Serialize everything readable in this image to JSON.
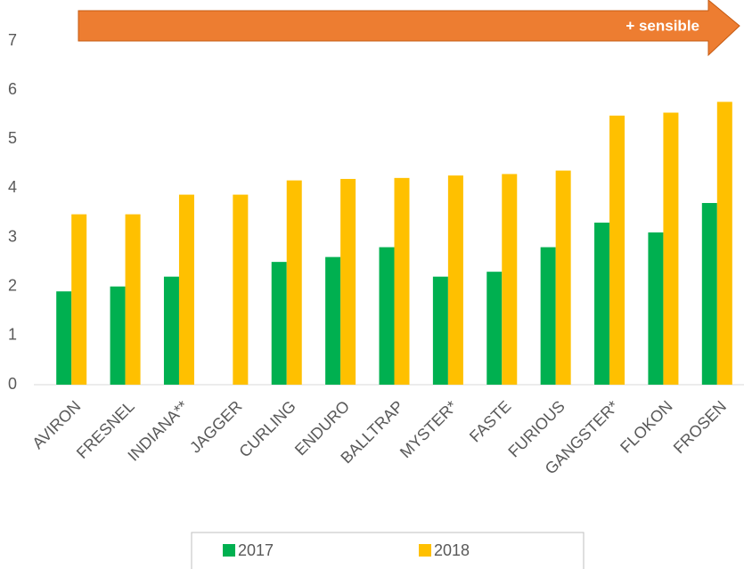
{
  "chart_data": {
    "type": "bar",
    "annotation": "+ sensible",
    "categories": [
      "AVIRON",
      "FRESNEL",
      "INDIANA**",
      "JAGGER",
      "CURLING",
      "ENDURO",
      "BALLTRAP",
      "MYSTER*",
      "FASTE",
      "FURIOUS",
      "GANGSTER*",
      "FLOKON",
      "FROSEN"
    ],
    "series": [
      {
        "name": "2017",
        "color": "#00B050",
        "values": [
          1.9,
          2.0,
          2.2,
          null,
          2.5,
          2.6,
          2.8,
          2.2,
          2.3,
          2.8,
          3.3,
          3.1,
          3.7
        ]
      },
      {
        "name": "2018",
        "color": "#FFC000",
        "values": [
          3.47,
          3.47,
          3.87,
          3.87,
          4.16,
          4.19,
          4.21,
          4.26,
          4.29,
          4.36,
          5.48,
          5.54,
          5.76
        ]
      }
    ],
    "ylim": [
      0,
      7
    ],
    "yticks": [
      0,
      1,
      2,
      3,
      4,
      5,
      6,
      7
    ],
    "grid": false,
    "legend": "bottom"
  }
}
